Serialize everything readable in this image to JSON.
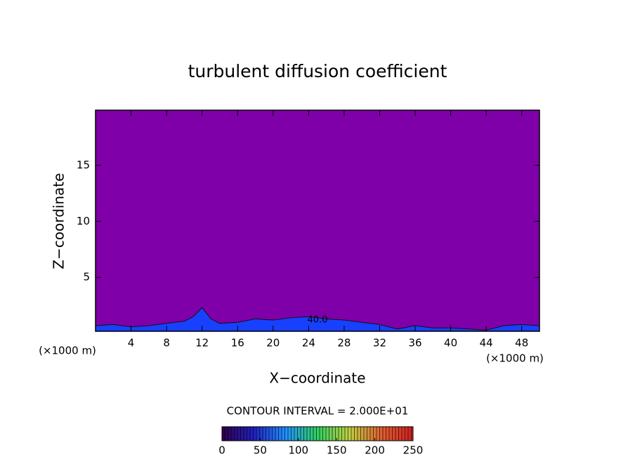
{
  "chart_data": {
    "type": "contour",
    "title": "turbulent diffusion coefficient",
    "x_label": "X−coordinate",
    "y_label": "Z−coordinate",
    "x_unit_left": "(×1000 m)",
    "x_unit_right": "(×1000 m)",
    "xlim": [
      0,
      50
    ],
    "xticks": [
      4,
      8,
      12,
      16,
      20,
      24,
      28,
      32,
      36,
      40,
      44,
      48
    ],
    "ylim": [
      0.2,
      19.9
    ],
    "yticks": [
      5,
      10,
      15
    ],
    "background_color": "#7f00a8",
    "contour": {
      "label": "40.0",
      "level": 40,
      "color": "#1840ff",
      "x": [
        0,
        2,
        4,
        6,
        8,
        10,
        11,
        12,
        13,
        14,
        16,
        18,
        20,
        22,
        24,
        26,
        28,
        30,
        32,
        34,
        36,
        38,
        40,
        42,
        44,
        46,
        48,
        50
      ],
      "z": [
        0.7,
        0.8,
        0.6,
        0.7,
        0.9,
        1.1,
        1.5,
        2.3,
        1.3,
        0.9,
        1.0,
        1.3,
        1.2,
        1.4,
        1.5,
        1.3,
        1.2,
        1.0,
        0.8,
        0.4,
        0.7,
        0.5,
        0.5,
        0.4,
        0.3,
        0.7,
        0.8,
        0.7
      ]
    },
    "contour_interval": "CONTOUR INTERVAL = 2.000E+01",
    "colorbar": {
      "range": [
        0,
        250
      ],
      "ticks": [
        0,
        50,
        100,
        150,
        200,
        250
      ],
      "colors": [
        "#30004a",
        "#2020c0",
        "#2090ff",
        "#30d060",
        "#c0d040",
        "#e06030",
        "#d02020"
      ]
    }
  }
}
